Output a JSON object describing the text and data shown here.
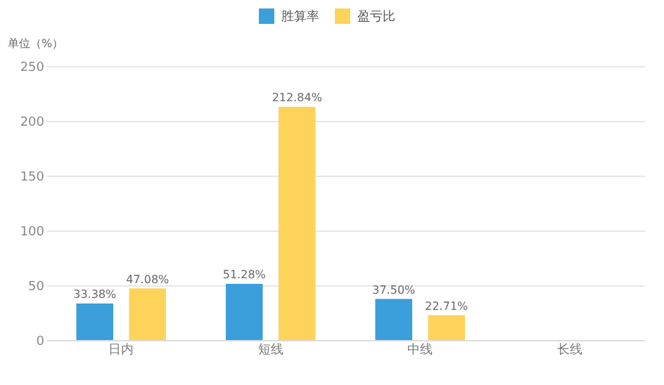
{
  "chart_data": {
    "type": "bar",
    "ylabel": "单位（%）",
    "categories": [
      "日内",
      "短线",
      "中线",
      "长线"
    ],
    "series": [
      {
        "name": "胜算率",
        "color": "#3a9fdb",
        "values": [
          33.38,
          51.28,
          37.5,
          null
        ],
        "value_labels": [
          "33.38%",
          "51.28%",
          "37.50%",
          null
        ]
      },
      {
        "name": "盈亏比",
        "color": "#fdd35a",
        "values": [
          47.08,
          212.84,
          22.71,
          null
        ],
        "value_labels": [
          "47.08%",
          "212.84%",
          "22.71%",
          null
        ]
      }
    ],
    "ylim": [
      0,
      250
    ],
    "yticks": [
      0,
      50,
      100,
      150,
      200,
      250
    ],
    "grid": "y",
    "legend": "top"
  }
}
